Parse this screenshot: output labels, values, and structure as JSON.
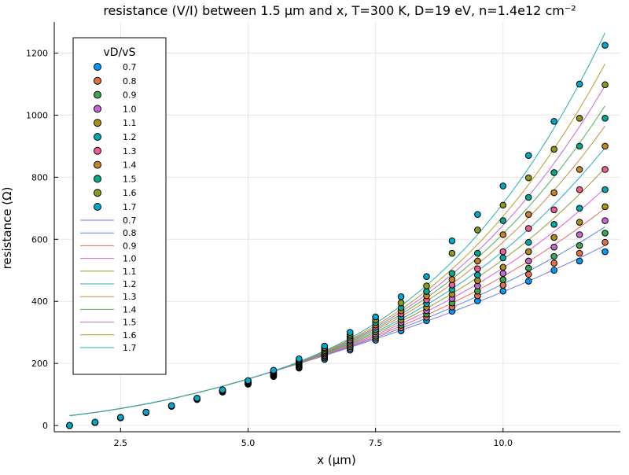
{
  "chart_data": {
    "type": "scatter",
    "title": "resistance (V/I) between 1.5 μm and x, T=300 K, D=19 eV, n=1.4e12 cm⁻²",
    "xlabel": "x (μm)",
    "ylabel": "resistance (Ω)",
    "xlim": [
      1.2,
      12.3
    ],
    "ylim": [
      -20,
      1300
    ],
    "xticks": [
      2.5,
      5.0,
      7.5,
      10.0
    ],
    "xtick_labels": [
      "2.5",
      "5.0",
      "7.5",
      "10.0"
    ],
    "yticks": [
      0,
      200,
      400,
      600,
      800,
      1000,
      1200
    ],
    "ytick_labels": [
      "0",
      "200",
      "400",
      "600",
      "800",
      "1000",
      "1200"
    ],
    "grid": true,
    "legend_title": "vD/vS",
    "legend_position": "top-left",
    "x": [
      1.5,
      2.0,
      2.5,
      3.0,
      3.5,
      4.0,
      4.5,
      5.0,
      5.5,
      6.0,
      6.5,
      7.0,
      7.5,
      8.0,
      8.5,
      9.0,
      9.5,
      10.0,
      10.5,
      11.0,
      11.5,
      12.0
    ],
    "marker_series": [
      {
        "name": "0.7",
        "color": "#009AFA",
        "values": [
          0,
          10,
          25,
          42,
          62,
          84,
          108,
          133,
          158,
          185,
          213,
          243,
          275,
          305,
          338,
          368,
          402,
          433,
          465,
          500,
          530,
          560
        ]
      },
      {
        "name": "0.8",
        "color": "#E36F47",
        "values": [
          0,
          10,
          25,
          42,
          62,
          84,
          108,
          134,
          160,
          188,
          218,
          249,
          282,
          315,
          349,
          382,
          418,
          452,
          487,
          523,
          555,
          590
        ]
      },
      {
        "name": "0.9",
        "color": "#3EA44E",
        "values": [
          0,
          10,
          25,
          42,
          62,
          85,
          109,
          135,
          162,
          191,
          222,
          254,
          288,
          323,
          359,
          395,
          433,
          470,
          507,
          545,
          580,
          620
        ]
      },
      {
        "name": "1.0",
        "color": "#C468D0",
        "values": [
          0,
          10,
          25,
          42,
          62,
          85,
          110,
          136,
          164,
          194,
          226,
          260,
          295,
          332,
          370,
          409,
          450,
          490,
          530,
          575,
          615,
          660
        ]
      },
      {
        "name": "1.1",
        "color": "#AD8E18",
        "values": [
          0,
          10,
          25,
          42,
          63,
          86,
          111,
          137,
          166,
          197,
          230,
          265,
          302,
          341,
          381,
          423,
          467,
          510,
          560,
          606,
          655,
          705
        ]
      },
      {
        "name": "1.2",
        "color": "#00A9AD",
        "values": [
          0,
          10,
          25,
          42,
          63,
          86,
          111,
          138,
          168,
          200,
          234,
          271,
          309,
          350,
          393,
          438,
          485,
          540,
          590,
          648,
          700,
          760
        ]
      },
      {
        "name": "1.3",
        "color": "#ED5E93",
        "values": [
          0,
          10,
          25,
          43,
          63,
          86,
          112,
          139,
          170,
          203,
          238,
          276,
          317,
          360,
          405,
          453,
          505,
          560,
          635,
          695,
          760,
          825
        ]
      },
      {
        "name": "1.4",
        "color": "#C68225",
        "values": [
          0,
          10,
          26,
          43,
          63,
          87,
          113,
          141,
          172,
          206,
          242,
          282,
          324,
          370,
          418,
          470,
          530,
          615,
          680,
          750,
          825,
          900
        ]
      },
      {
        "name": "1.5",
        "color": "#00A98E",
        "values": [
          0,
          10,
          26,
          43,
          64,
          87,
          113,
          142,
          174,
          209,
          247,
          288,
          332,
          380,
          432,
          490,
          555,
          660,
          735,
          815,
          900,
          990
        ]
      },
      {
        "name": "1.6",
        "color": "#8E971E",
        "values": [
          0,
          10,
          26,
          43,
          64,
          88,
          114,
          143,
          176,
          212,
          251,
          294,
          341,
          395,
          450,
          555,
          630,
          710,
          798,
          890,
          990,
          1098
        ]
      },
      {
        "name": "1.7",
        "color": "#00A8CB",
        "values": [
          0,
          11,
          26,
          43,
          64,
          88,
          115,
          145,
          178,
          215,
          256,
          300,
          350,
          415,
          480,
          595,
          680,
          772,
          870,
          980,
          1100,
          1225
        ]
      }
    ],
    "line_series": [
      {
        "name": "0.7",
        "color": "#7B79E6",
        "end": 580
      },
      {
        "name": "0.8",
        "color": "#5E82ED",
        "end": 640
      },
      {
        "name": "0.9",
        "color": "#E8695E",
        "end": 700
      },
      {
        "name": "1.0",
        "color": "#D665D6",
        "end": 765
      },
      {
        "name": "1.1",
        "color": "#999A2A",
        "end": 830
      },
      {
        "name": "1.2",
        "color": "#2AA9C9",
        "end": 895
      },
      {
        "name": "1.3",
        "color": "#C78D42",
        "end": 965
      },
      {
        "name": "1.4",
        "color": "#52AF58",
        "end": 1030
      },
      {
        "name": "1.5",
        "color": "#C566D4",
        "end": 1095
      },
      {
        "name": "1.6",
        "color": "#BC9A22",
        "end": 1165
      },
      {
        "name": "1.7",
        "color": "#1FB0B0",
        "end": 1265
      }
    ],
    "line_start": {
      "x": 1.5,
      "y": 32
    },
    "line_common_at_5": 150
  }
}
